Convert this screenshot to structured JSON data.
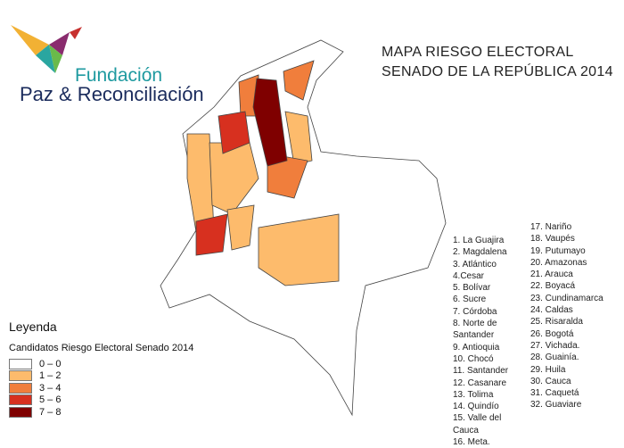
{
  "logo": {
    "line1": "Fundación",
    "line2": "Paz & Reconciliación"
  },
  "title": [
    "MAPA RIESGO ELECTORAL",
    "SENADO DE LA REPÚBLICA 2014"
  ],
  "legend": {
    "title": "Leyenda",
    "subtitle": "Candidatos Riesgo Electoral  Senado 2014",
    "items": [
      {
        "label": "0 – 0",
        "color": "#ffffff"
      },
      {
        "label": "1 – 2",
        "color": "#fdbb6c"
      },
      {
        "label": "3 – 4",
        "color": "#f07e3c"
      },
      {
        "label": "5 – 6",
        "color": "#d7301f"
      },
      {
        "label": "7 – 8",
        "color": "#7f0000"
      }
    ]
  },
  "departments": [
    [
      "1. La Guajira",
      "2. Magdalena",
      "3. Atlántico",
      "4.Cesar",
      "5. Bolívar",
      "6. Sucre",
      "7. Córdoba",
      "8. Norte de Santander",
      "9. Antioquia",
      "10. Chocó",
      "11. Santander",
      "12. Casanare",
      "13. Tolima",
      "14. Quindío",
      "15. Valle del Cauca",
      "16. Meta."
    ],
    [
      "17. Nariño",
      "18. Vaupés",
      "19. Putumayo",
      "20. Amazonas",
      "21. Arauca",
      "22. Boyacá",
      "23. Cundinamarca",
      "24. Caldas",
      "25. Risaralda",
      "26. Bogotá",
      "27. Vichada.",
      "28. Guainía.",
      "29. Huila",
      "30. Cauca",
      "31. Caquetá",
      "32. Guaviare"
    ]
  ]
}
